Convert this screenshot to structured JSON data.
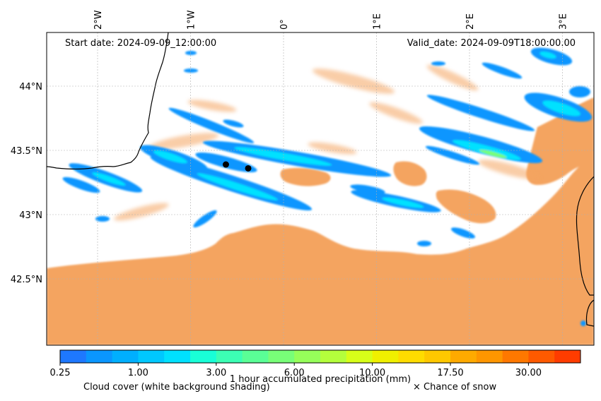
{
  "map": {
    "start_label": "Start date: 2024-09-09_12:00:00",
    "valid_label": "Valid_date: 2024-09-09T18:00:00.00",
    "lon_ticks": [
      "2°W",
      "1°W",
      "0°",
      "1°E",
      "2°E",
      "3°E"
    ],
    "lat_ticks": [
      "44°N",
      "43.5°N",
      "43°N",
      "42.5°N"
    ],
    "markers": [
      {
        "name": "marker-point-west",
        "lon": -0.62,
        "lat": 43.39
      },
      {
        "name": "marker-point-east",
        "lon": -0.38,
        "lat": 43.36
      }
    ]
  },
  "colorbar": {
    "tick_labels": [
      "0.25",
      "1.00",
      "3.00",
      "6.00",
      "10.00",
      "17.50",
      "30.00"
    ],
    "colors": [
      "#1e78ff",
      "#0a96ff",
      "#00afff",
      "#00c8ff",
      "#00e1ff",
      "#19ffd7",
      "#3cffb4",
      "#5aff96",
      "#78ff78",
      "#96ff5a",
      "#b4ff3c",
      "#d7ff19",
      "#f0f000",
      "#ffdc00",
      "#ffc800",
      "#ffaa00",
      "#ff9600",
      "#ff7800",
      "#ff5a00",
      "#ff3c00"
    ],
    "label": "1 hour accumulated precipitation (mm)",
    "cloud_legend": "Cloud cover (white background shading)",
    "snow_legend": "× Chance of snow"
  },
  "colors": {
    "cloud": "#f4a460",
    "sea": "#add8e6",
    "precip_light": "#0a96ff",
    "precip_mid": "#00e1ff",
    "precip_high": "#78ff78"
  }
}
